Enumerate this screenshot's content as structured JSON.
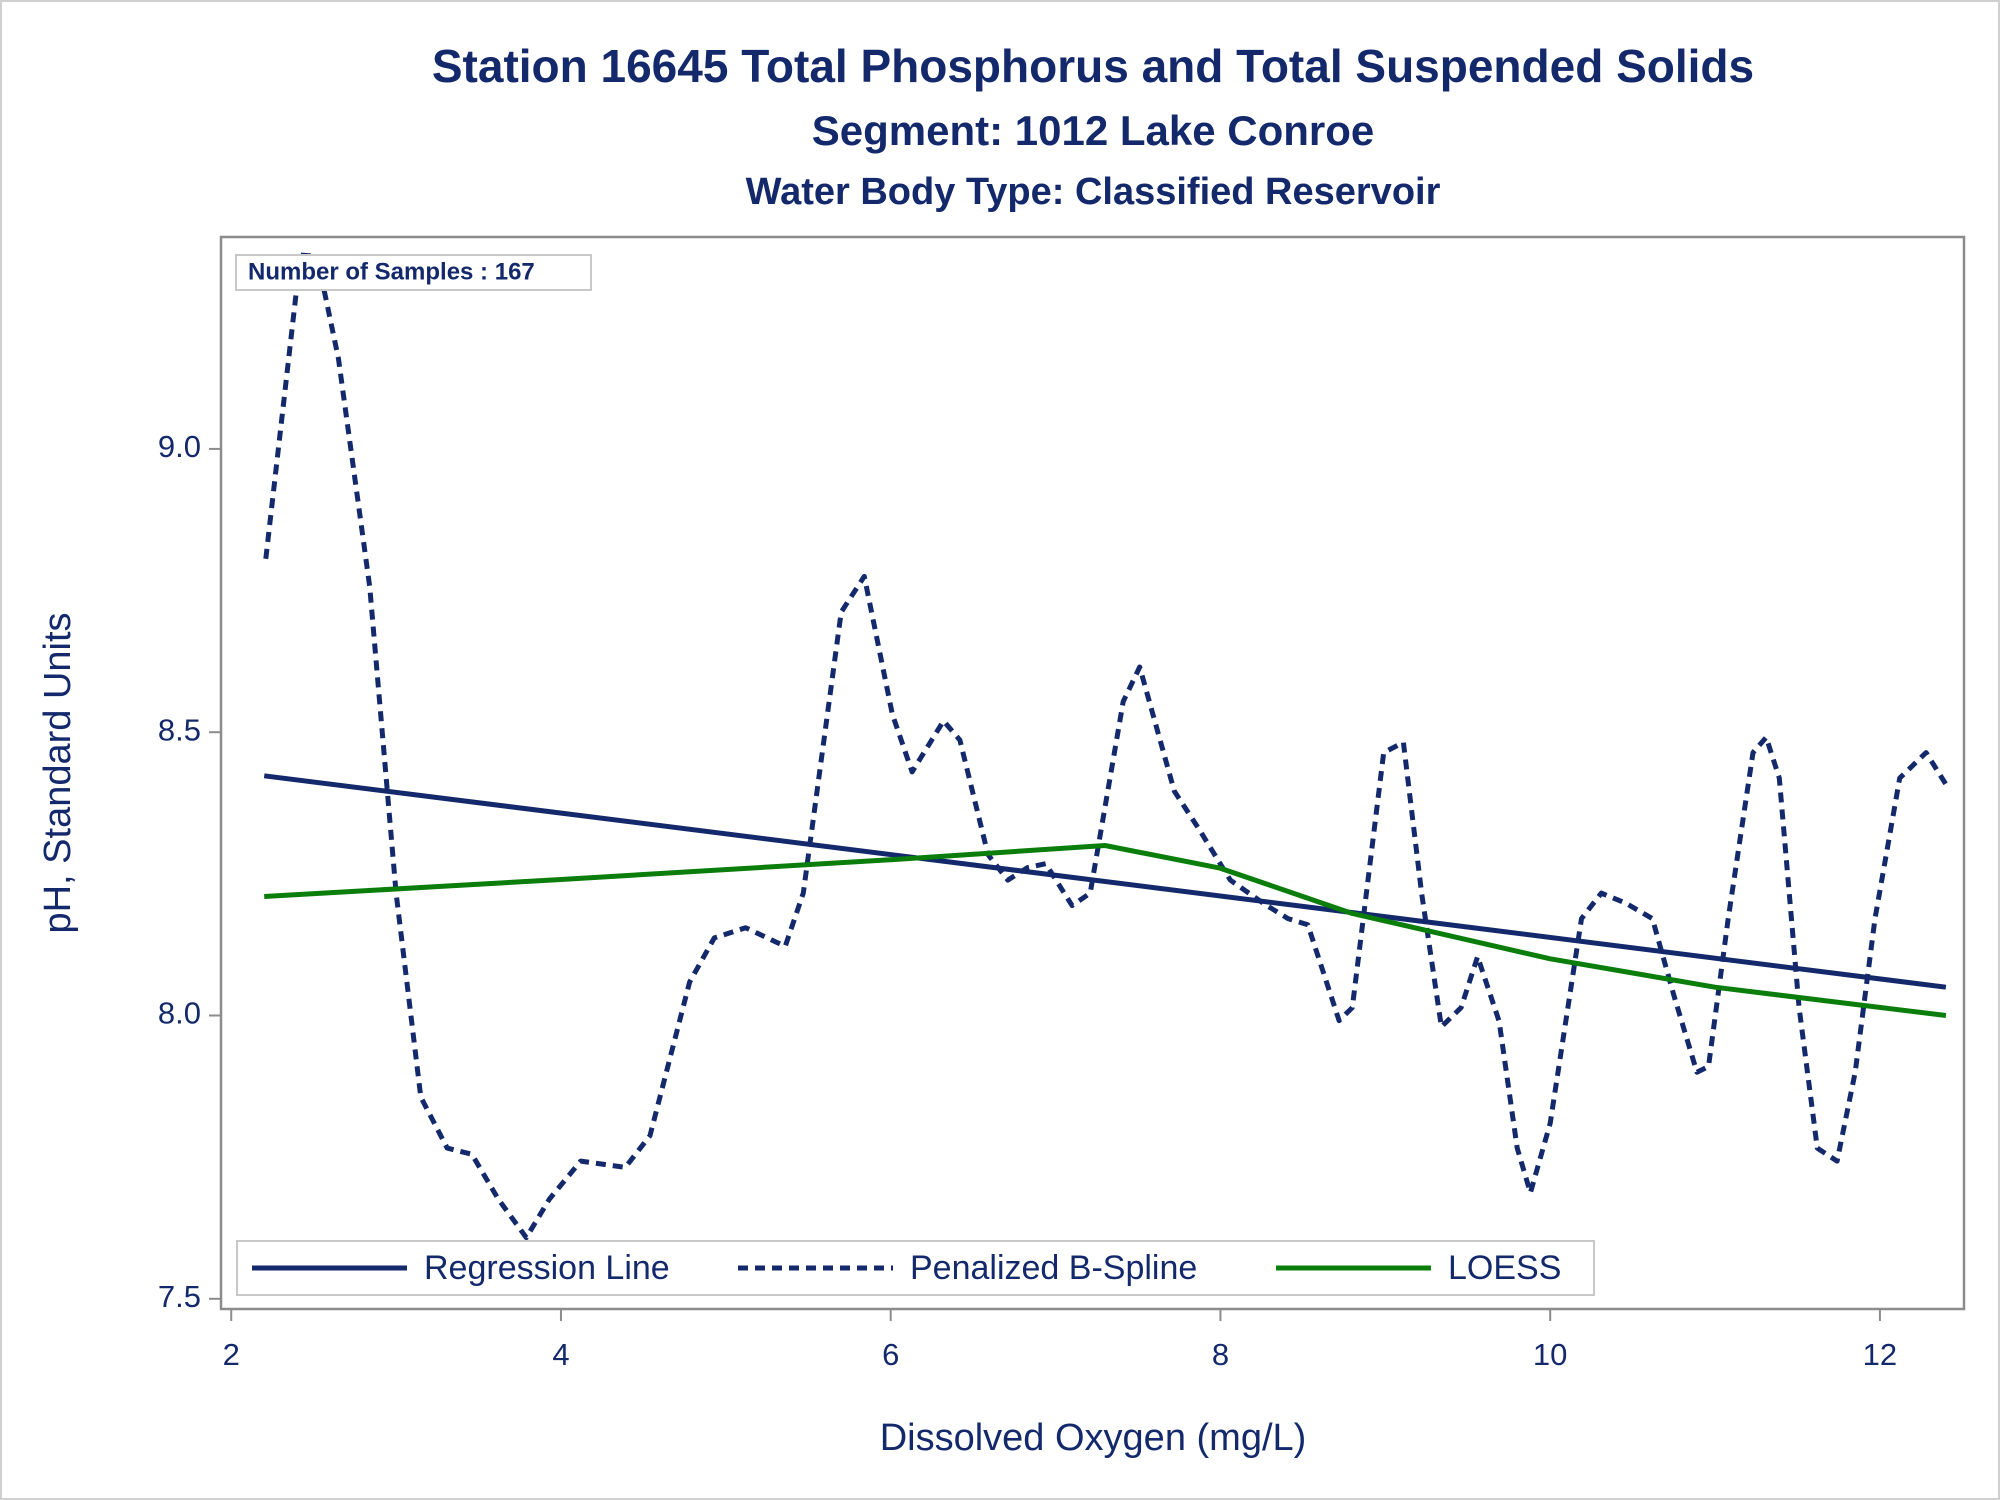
{
  "chart_data": {
    "type": "line",
    "title": "Station 16645  Total Phosphorus and Total Suspended Solids",
    "subtitle": "Segment: 1012  Lake Conroe",
    "subtitle2": "Water Body Type: Classified Reservoir",
    "annotation": "Number of Samples : 167",
    "xlabel": "Dissolved Oxygen (mg/L)",
    "ylabel": "pH, Standard Units",
    "xlim": [
      1.938,
      12.51
    ],
    "ylim": [
      7.482,
      9.374
    ],
    "xticks": [
      2,
      4,
      6,
      8,
      10,
      12
    ],
    "yticks": [
      {
        "value": 7.5,
        "label": "7.5"
      },
      {
        "value": 8,
        "label": "8.0"
      },
      {
        "value": 8.5,
        "label": "8.5"
      },
      {
        "value": 9,
        "label": "9.0"
      }
    ],
    "legend": "bottom",
    "series": [
      {
        "name": "Regression Line",
        "color": "#13296b",
        "style": "solid",
        "x": [
          2.2,
          12.4
        ],
        "values": [
          8.423,
          8.05
        ]
      },
      {
        "name": "Penalized B-Spline",
        "color": "#13296b",
        "style": "dashed",
        "x": [
          2.21,
          2.42,
          2.52,
          2.65,
          2.84,
          3.0,
          3.15,
          3.31,
          3.46,
          3.62,
          3.79,
          3.93,
          4.12,
          4.39,
          4.54,
          4.78,
          4.93,
          5.12,
          5.36,
          5.47,
          5.7,
          5.84,
          6.01,
          6.13,
          6.32,
          6.42,
          6.59,
          6.71,
          6.83,
          6.94,
          7.1,
          7.21,
          7.41,
          7.51,
          7.72,
          7.87,
          8.06,
          8.26,
          8.41,
          8.53,
          8.72,
          8.8,
          8.99,
          9.11,
          9.22,
          9.34,
          9.46,
          9.56,
          9.69,
          9.8,
          9.88,
          10.0,
          10.19,
          10.31,
          10.46,
          10.62,
          10.75,
          10.89,
          10.96,
          11.08,
          11.23,
          11.31,
          11.39,
          11.51,
          11.62,
          11.74,
          11.85,
          11.97,
          12.12,
          12.28,
          12.4
        ],
        "values": [
          8.806,
          9.342,
          9.34,
          9.16,
          8.757,
          8.216,
          7.856,
          7.766,
          7.755,
          7.676,
          7.608,
          7.676,
          7.743,
          7.732,
          7.788,
          8.059,
          8.137,
          8.155,
          8.122,
          8.216,
          8.712,
          8.775,
          8.532,
          8.43,
          8.52,
          8.486,
          8.284,
          8.239,
          8.261,
          8.268,
          8.194,
          8.216,
          8.554,
          8.615,
          8.396,
          8.329,
          8.239,
          8.198,
          8.171,
          8.16,
          7.991,
          8.014,
          8.464,
          8.482,
          8.216,
          7.98,
          8.014,
          8.104,
          7.99,
          7.766,
          7.687,
          7.81,
          8.171,
          8.216,
          8.198,
          8.171,
          8.036,
          7.9,
          7.91,
          8.171,
          8.464,
          8.491,
          8.419,
          8.014,
          7.766,
          7.743,
          7.9,
          8.171,
          8.419,
          8.464,
          8.408
        ]
      },
      {
        "name": "LOESS",
        "color": "#0a7d0a",
        "style": "solid",
        "x": [
          2.2,
          4,
          6,
          7.3,
          8,
          8.8,
          10,
          11,
          12.4
        ],
        "values": [
          8.21,
          8.24,
          8.275,
          8.3,
          8.26,
          8.18,
          8.1,
          8.05,
          8.0
        ]
      }
    ]
  }
}
